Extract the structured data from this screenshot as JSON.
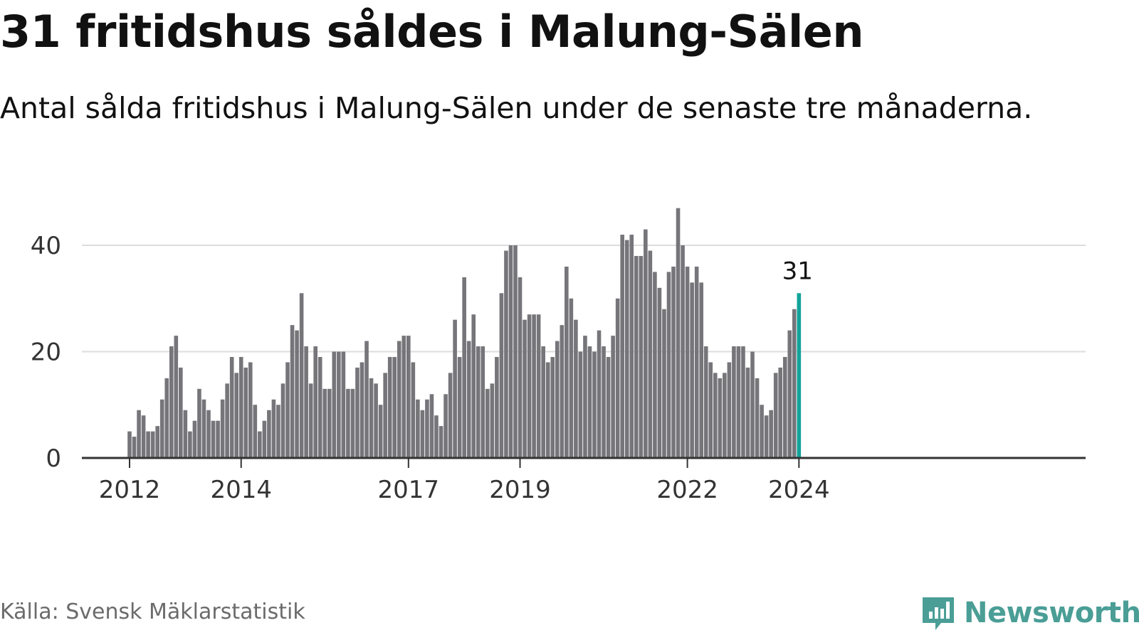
{
  "title": "31 fritidshus såldes i Malung-Sälen",
  "subtitle": "Antal sålda fritidshus i Malung-Sälen under de senaste tre månaderna.",
  "source": "Källa: Svensk Mäklarstatistik",
  "brand": {
    "name": "Newsworthy",
    "icon": "newsworthy-logo-icon",
    "color": "#4a9e96"
  },
  "colors": {
    "bar": "#76757a",
    "highlight": "#12a39a",
    "grid": "#dddddd",
    "axis": "#333333"
  },
  "chart_data": {
    "type": "bar",
    "title": "31 fritidshus såldes i Malung-Sälen",
    "xlabel": "",
    "ylabel": "",
    "ylim": [
      0,
      50
    ],
    "yticks": [
      0,
      20,
      40
    ],
    "xticks": [
      {
        "label": "2012",
        "index": 0
      },
      {
        "label": "2014",
        "index": 24
      },
      {
        "label": "2017",
        "index": 60
      },
      {
        "label": "2019",
        "index": 84
      },
      {
        "label": "2022",
        "index": 120
      },
      {
        "label": "2024",
        "index": 144
      }
    ],
    "highlight_index": 144,
    "highlight_label": "31",
    "values": [
      5,
      4,
      9,
      8,
      5,
      5,
      6,
      11,
      15,
      21,
      23,
      17,
      9,
      5,
      7,
      13,
      11,
      9,
      7,
      7,
      11,
      14,
      19,
      16,
      19,
      17,
      18,
      10,
      5,
      7,
      9,
      11,
      10,
      14,
      18,
      25,
      24,
      31,
      21,
      14,
      21,
      19,
      13,
      13,
      20,
      20,
      20,
      13,
      13,
      17,
      18,
      22,
      15,
      14,
      10,
      16,
      19,
      19,
      22,
      23,
      23,
      18,
      11,
      9,
      11,
      12,
      8,
      6,
      12,
      16,
      26,
      19,
      34,
      22,
      27,
      21,
      21,
      13,
      14,
      19,
      31,
      39,
      40,
      40,
      34,
      26,
      27,
      27,
      27,
      21,
      18,
      19,
      22,
      25,
      36,
      30,
      26,
      20,
      23,
      21,
      20,
      24,
      21,
      19,
      23,
      30,
      42,
      41,
      42,
      38,
      38,
      43,
      39,
      35,
      32,
      28,
      35,
      36,
      47,
      40,
      36,
      33,
      36,
      33,
      21,
      18,
      16,
      15,
      16,
      18,
      21,
      21,
      21,
      17,
      20,
      15,
      10,
      8,
      9,
      16,
      17,
      19,
      24,
      28,
      31
    ]
  }
}
